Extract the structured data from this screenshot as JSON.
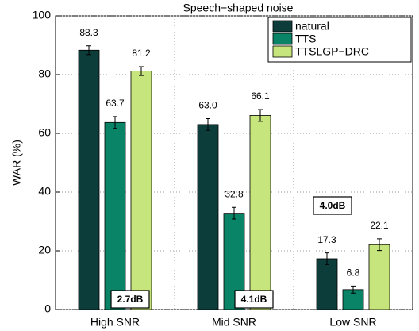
{
  "chart_data": {
    "type": "bar",
    "title": "Speech−shaped noise",
    "ylabel": "WAR (%)",
    "categories": [
      "High SNR",
      "Mid SNR",
      "Low SNR"
    ],
    "series": [
      {
        "name": "natural",
        "color": "#0d3d3b",
        "values": [
          88.3,
          63.0,
          17.3
        ],
        "value_labels": [
          "88.3",
          "63.0",
          "17.3"
        ],
        "errors": [
          1.5,
          2,
          2
        ]
      },
      {
        "name": "TTS",
        "color": "#0a8466",
        "values": [
          63.7,
          32.8,
          6.8
        ],
        "value_labels": [
          "63.7",
          "32.8",
          "6.8"
        ],
        "errors": [
          2,
          2,
          1.2
        ]
      },
      {
        "name": "TTSLGP−DRC",
        "color": "#c6e57c",
        "values": [
          81.2,
          66.1,
          22.1
        ],
        "value_labels": [
          "81.2",
          "66.1",
          "22.1"
        ],
        "errors": [
          1.5,
          2,
          2
        ]
      }
    ],
    "annotations": [
      "2.7dB",
      "4.1dB",
      "4.0dB"
    ],
    "ylim": [
      0,
      100
    ],
    "yticks": [
      0,
      20,
      40,
      60,
      80,
      100
    ],
    "grid": true,
    "legend": "upper right"
  }
}
